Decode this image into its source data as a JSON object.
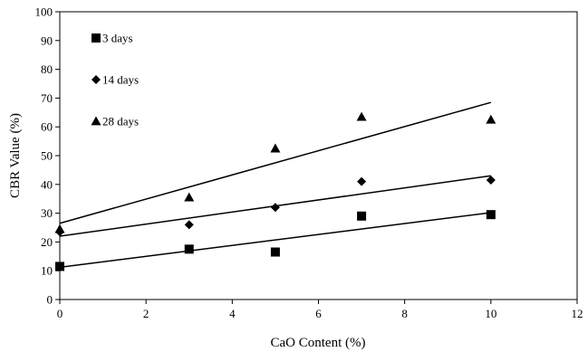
{
  "chart_data": {
    "type": "scatter",
    "title": "",
    "xlabel": "CaO Content (%)",
    "ylabel": "CBR Value (%)",
    "xlim": [
      0,
      12
    ],
    "ylim": [
      0,
      100
    ],
    "x_ticks": [
      0,
      2,
      4,
      6,
      8,
      10,
      12
    ],
    "y_ticks": [
      0,
      10,
      20,
      30,
      40,
      50,
      60,
      70,
      80,
      90,
      100
    ],
    "grid": false,
    "legend_position": "top-left",
    "series": [
      {
        "name": "3 days",
        "marker": "square",
        "points": [
          [
            0,
            11.5
          ],
          [
            3,
            17.5
          ],
          [
            5,
            16.5
          ],
          [
            7,
            29
          ],
          [
            10,
            29.5
          ]
        ],
        "trendline": {
          "x0": 0,
          "y0": 11.2,
          "x1": 10,
          "y1": 30.2
        }
      },
      {
        "name": "14 days",
        "marker": "diamond",
        "points": [
          [
            0,
            23.5
          ],
          [
            3,
            26
          ],
          [
            5,
            32
          ],
          [
            7,
            41
          ],
          [
            10,
            41.5
          ]
        ],
        "trendline": {
          "x0": 0,
          "y0": 22,
          "x1": 10,
          "y1": 43
        }
      },
      {
        "name": "28 days",
        "marker": "triangle",
        "points": [
          [
            0,
            24.5
          ],
          [
            3,
            35.5
          ],
          [
            5,
            52.5
          ],
          [
            7,
            63.5
          ],
          [
            10,
            62.5
          ]
        ],
        "trendline": {
          "x0": 0,
          "y0": 26.5,
          "x1": 10,
          "y1": 68.5
        }
      }
    ]
  }
}
